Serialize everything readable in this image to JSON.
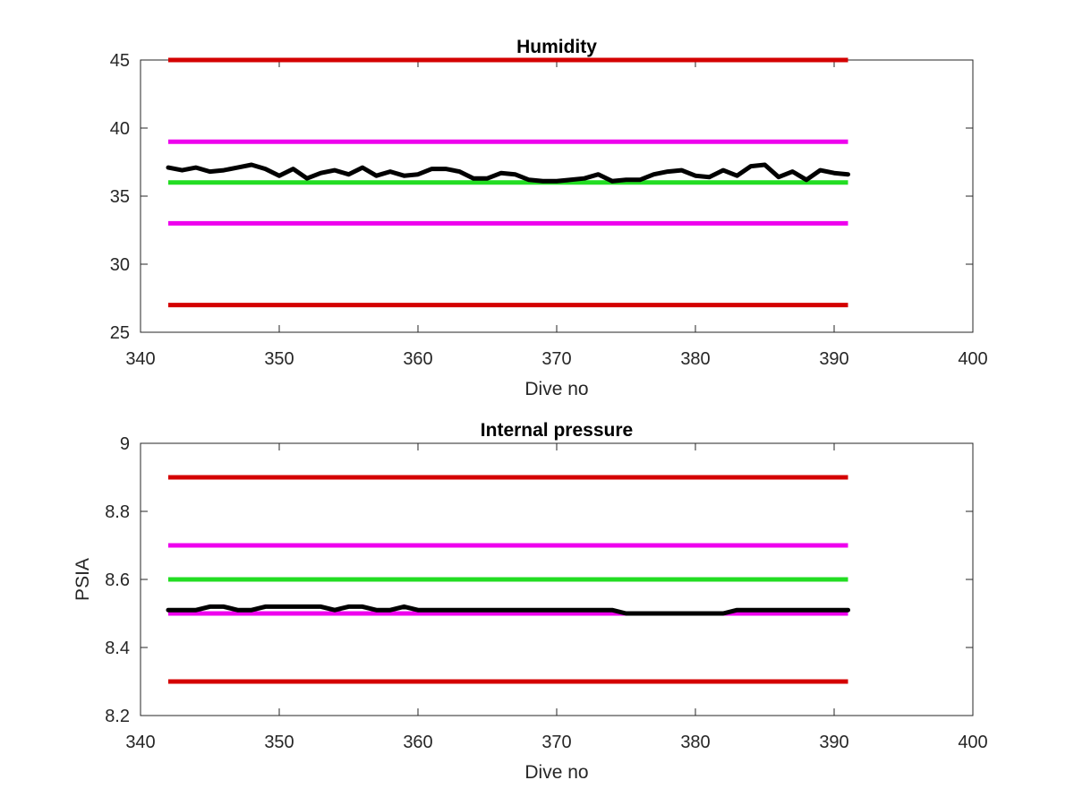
{
  "chart_data": [
    {
      "type": "line",
      "title": "Humidity",
      "xlabel": "Dive no",
      "ylabel": "",
      "xlim": [
        340,
        400
      ],
      "ylim": [
        25,
        45
      ],
      "xticks": [
        "340",
        "350",
        "360",
        "370",
        "380",
        "390",
        "400"
      ],
      "yticks": [
        "25",
        "30",
        "35",
        "40",
        "45"
      ],
      "grid": false,
      "reference_lines": [
        {
          "y": 45,
          "x": [
            342,
            391
          ],
          "color": "#d40000"
        },
        {
          "y": 39,
          "x": [
            342,
            391
          ],
          "color": "#ee00ee"
        },
        {
          "y": 36,
          "x": [
            342,
            391
          ],
          "color": "#22dd22"
        },
        {
          "y": 33,
          "x": [
            342,
            391
          ],
          "color": "#ee00ee"
        },
        {
          "y": 27,
          "x": [
            342,
            391
          ],
          "color": "#d40000"
        }
      ],
      "series": [
        {
          "color": "#000000",
          "x": [
            342,
            343,
            344,
            345,
            346,
            347,
            348,
            349,
            350,
            351,
            352,
            353,
            354,
            355,
            356,
            357,
            358,
            359,
            360,
            361,
            362,
            363,
            364,
            365,
            366,
            367,
            368,
            369,
            370,
            371,
            372,
            373,
            374,
            375,
            376,
            377,
            378,
            379,
            380,
            381,
            382,
            383,
            384,
            385,
            386,
            387,
            388,
            389,
            390,
            391
          ],
          "values": [
            37.1,
            36.9,
            37.1,
            36.8,
            36.9,
            37.1,
            37.3,
            37.0,
            36.5,
            37.0,
            36.3,
            36.7,
            36.9,
            36.6,
            37.1,
            36.5,
            36.8,
            36.5,
            36.6,
            37.0,
            37.0,
            36.8,
            36.3,
            36.3,
            36.7,
            36.6,
            36.2,
            36.1,
            36.1,
            36.2,
            36.3,
            36.6,
            36.1,
            36.2,
            36.2,
            36.6,
            36.8,
            36.9,
            36.5,
            36.4,
            36.9,
            36.5,
            37.2,
            37.3,
            36.4,
            36.8,
            36.2,
            36.9,
            36.7,
            36.6
          ]
        }
      ]
    },
    {
      "type": "line",
      "title": "Internal pressure",
      "xlabel": "Dive no",
      "ylabel": "PSIA",
      "xlim": [
        340,
        400
      ],
      "ylim": [
        8.2,
        9
      ],
      "xticks": [
        "340",
        "350",
        "360",
        "370",
        "380",
        "390",
        "400"
      ],
      "yticks": [
        "8.2",
        "8.4",
        "8.6",
        "8.8",
        "9"
      ],
      "grid": false,
      "reference_lines": [
        {
          "y": 8.9,
          "x": [
            342,
            391
          ],
          "color": "#d40000"
        },
        {
          "y": 8.7,
          "x": [
            342,
            391
          ],
          "color": "#ee00ee"
        },
        {
          "y": 8.6,
          "x": [
            342,
            391
          ],
          "color": "#22dd22"
        },
        {
          "y": 8.5,
          "x": [
            342,
            391
          ],
          "color": "#ee00ee"
        },
        {
          "y": 8.3,
          "x": [
            342,
            391
          ],
          "color": "#d40000"
        }
      ],
      "series": [
        {
          "color": "#000000",
          "x": [
            342,
            343,
            344,
            345,
            346,
            347,
            348,
            349,
            350,
            351,
            352,
            353,
            354,
            355,
            356,
            357,
            358,
            359,
            360,
            361,
            362,
            363,
            364,
            365,
            366,
            367,
            368,
            369,
            370,
            371,
            372,
            373,
            374,
            375,
            376,
            377,
            378,
            379,
            380,
            381,
            382,
            383,
            384,
            385,
            386,
            387,
            388,
            389,
            390,
            391
          ],
          "values": [
            8.51,
            8.51,
            8.51,
            8.52,
            8.52,
            8.51,
            8.51,
            8.52,
            8.52,
            8.52,
            8.52,
            8.52,
            8.51,
            8.52,
            8.52,
            8.51,
            8.51,
            8.52,
            8.51,
            8.51,
            8.51,
            8.51,
            8.51,
            8.51,
            8.51,
            8.51,
            8.51,
            8.51,
            8.51,
            8.51,
            8.51,
            8.51,
            8.51,
            8.5,
            8.5,
            8.5,
            8.5,
            8.5,
            8.5,
            8.5,
            8.5,
            8.51,
            8.51,
            8.51,
            8.51,
            8.51,
            8.51,
            8.51,
            8.51,
            8.51
          ]
        }
      ]
    }
  ]
}
